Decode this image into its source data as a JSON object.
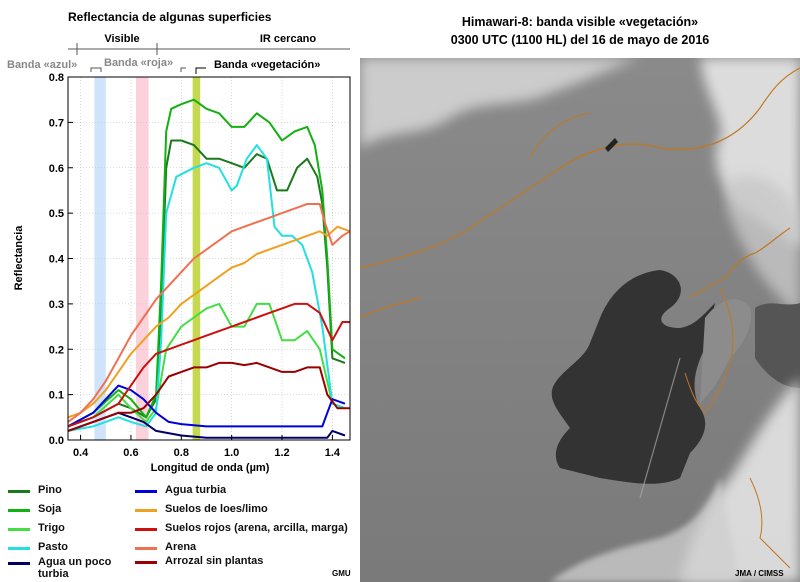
{
  "left_panel": {
    "title": "Reflectancia de algunas superficies",
    "region_labels": {
      "visible": "Visible",
      "nir": "IR cercano"
    },
    "band_labels": {
      "blue": "Banda «azul»",
      "red": "Banda «roja»",
      "veg": "Banda «vegetación»"
    },
    "credit": "GMU"
  },
  "right_panel": {
    "title_line1": "Himawari-8: banda visible «vegetación»",
    "title_line2": "0300 UTC (1100 HL) del 16 de mayo de 2016",
    "credit": "JMA / CIMSS"
  },
  "legend": [
    {
      "label": "Pino",
      "color": "#1a7a1a"
    },
    {
      "label": "Soja",
      "color": "#12b012"
    },
    {
      "label": "Trigo",
      "color": "#44dd44"
    },
    {
      "label": "Pasto",
      "color": "#22e0e0"
    },
    {
      "label": "Agua un poco turbia",
      "color": "#000066"
    },
    {
      "label": "Agua turbia",
      "color": "#0000dd"
    },
    {
      "label": "Suelos de loes/limo",
      "color": "#f0a020"
    },
    {
      "label": "Suelos rojos (arena, arcilla, marga)",
      "color": "#cc1010"
    },
    {
      "label": "Arena",
      "color": "#f07050"
    },
    {
      "label": "Arrozal sin plantas",
      "color": "#990000"
    }
  ],
  "chart_data": {
    "type": "line",
    "xlabel": "Longitud de onda (µm)",
    "ylabel": "Reflectancia",
    "xlim": [
      0.35,
      1.47
    ],
    "ylim": [
      0,
      0.8
    ],
    "xticks": [
      "0.4",
      "0.6",
      "0.8",
      "1.0",
      "1.2",
      "1.4"
    ],
    "yticks": [
      "0.0",
      "0.1",
      "0.2",
      "0.3",
      "0.4",
      "0.5",
      "0.6",
      "0.7",
      "0.8"
    ],
    "bands": [
      {
        "name": "Banda «azul»",
        "range": [
          0.455,
          0.5
        ],
        "color": "#cfe4fb"
      },
      {
        "name": "Banda «roja»",
        "range": [
          0.62,
          0.67
        ],
        "color": "#fbd2dc"
      },
      {
        "name": "Banda «vegetación»",
        "range": [
          0.845,
          0.875
        ],
        "color": "#c6d850"
      }
    ],
    "series": [
      {
        "name": "Pino",
        "color": "#1a7a1a",
        "points": [
          [
            0.35,
            0.03
          ],
          [
            0.45,
            0.05
          ],
          [
            0.55,
            0.08
          ],
          [
            0.6,
            0.07
          ],
          [
            0.66,
            0.05
          ],
          [
            0.7,
            0.09
          ],
          [
            0.72,
            0.3
          ],
          [
            0.74,
            0.6
          ],
          [
            0.76,
            0.66
          ],
          [
            0.8,
            0.66
          ],
          [
            0.85,
            0.65
          ],
          [
            0.9,
            0.62
          ],
          [
            0.95,
            0.62
          ],
          [
            1.0,
            0.61
          ],
          [
            1.05,
            0.6
          ],
          [
            1.1,
            0.63
          ],
          [
            1.14,
            0.62
          ],
          [
            1.18,
            0.55
          ],
          [
            1.22,
            0.55
          ],
          [
            1.26,
            0.6
          ],
          [
            1.3,
            0.62
          ],
          [
            1.34,
            0.58
          ],
          [
            1.36,
            0.52
          ],
          [
            1.38,
            0.38
          ],
          [
            1.4,
            0.18
          ],
          [
            1.45,
            0.17
          ]
        ]
      },
      {
        "name": "Soja",
        "color": "#12b012",
        "points": [
          [
            0.35,
            0.03
          ],
          [
            0.45,
            0.06
          ],
          [
            0.55,
            0.11
          ],
          [
            0.6,
            0.09
          ],
          [
            0.66,
            0.05
          ],
          [
            0.7,
            0.1
          ],
          [
            0.72,
            0.35
          ],
          [
            0.74,
            0.68
          ],
          [
            0.76,
            0.73
          ],
          [
            0.8,
            0.74
          ],
          [
            0.85,
            0.75
          ],
          [
            0.9,
            0.73
          ],
          [
            0.95,
            0.72
          ],
          [
            1.0,
            0.69
          ],
          [
            1.05,
            0.69
          ],
          [
            1.1,
            0.72
          ],
          [
            1.15,
            0.7
          ],
          [
            1.2,
            0.66
          ],
          [
            1.25,
            0.68
          ],
          [
            1.3,
            0.69
          ],
          [
            1.33,
            0.65
          ],
          [
            1.36,
            0.55
          ],
          [
            1.38,
            0.4
          ],
          [
            1.4,
            0.2
          ],
          [
            1.45,
            0.18
          ]
        ]
      },
      {
        "name": "Trigo",
        "color": "#44dd44",
        "points": [
          [
            0.35,
            0.03
          ],
          [
            0.45,
            0.05
          ],
          [
            0.55,
            0.1
          ],
          [
            0.6,
            0.07
          ],
          [
            0.66,
            0.04
          ],
          [
            0.7,
            0.07
          ],
          [
            0.74,
            0.2
          ],
          [
            0.8,
            0.25
          ],
          [
            0.85,
            0.27
          ],
          [
            0.9,
            0.29
          ],
          [
            0.95,
            0.3
          ],
          [
            1.0,
            0.25
          ],
          [
            1.05,
            0.25
          ],
          [
            1.1,
            0.3
          ],
          [
            1.15,
            0.3
          ],
          [
            1.2,
            0.22
          ],
          [
            1.25,
            0.22
          ],
          [
            1.3,
            0.24
          ],
          [
            1.35,
            0.2
          ],
          [
            1.4,
            0.08
          ],
          [
            1.45,
            0.07
          ]
        ]
      },
      {
        "name": "Pasto",
        "color": "#22e0e0",
        "points": [
          [
            0.35,
            0.02
          ],
          [
            0.45,
            0.03
          ],
          [
            0.55,
            0.05
          ],
          [
            0.6,
            0.04
          ],
          [
            0.66,
            0.03
          ],
          [
            0.7,
            0.06
          ],
          [
            0.72,
            0.22
          ],
          [
            0.74,
            0.5
          ],
          [
            0.78,
            0.58
          ],
          [
            0.85,
            0.6
          ],
          [
            0.9,
            0.61
          ],
          [
            0.95,
            0.6
          ],
          [
            1.0,
            0.55
          ],
          [
            1.02,
            0.56
          ],
          [
            1.06,
            0.62
          ],
          [
            1.1,
            0.65
          ],
          [
            1.14,
            0.62
          ],
          [
            1.17,
            0.47
          ],
          [
            1.2,
            0.45
          ],
          [
            1.24,
            0.45
          ],
          [
            1.28,
            0.43
          ],
          [
            1.32,
            0.37
          ],
          [
            1.36,
            0.25
          ],
          [
            1.4,
            0.08
          ],
          [
            1.45,
            0.07
          ]
        ]
      },
      {
        "name": "Agua un poco turbia",
        "color": "#000066",
        "points": [
          [
            0.35,
            0.02
          ],
          [
            0.45,
            0.04
          ],
          [
            0.55,
            0.06
          ],
          [
            0.6,
            0.05
          ],
          [
            0.65,
            0.04
          ],
          [
            0.7,
            0.02
          ],
          [
            0.8,
            0.01
          ],
          [
            0.9,
            0.005
          ],
          [
            1.0,
            0.005
          ],
          [
            1.2,
            0.005
          ],
          [
            1.3,
            0.005
          ],
          [
            1.38,
            0.005
          ],
          [
            1.4,
            0.02
          ],
          [
            1.45,
            0.01
          ]
        ]
      },
      {
        "name": "Agua turbia",
        "color": "#0000dd",
        "points": [
          [
            0.35,
            0.03
          ],
          [
            0.45,
            0.06
          ],
          [
            0.55,
            0.12
          ],
          [
            0.6,
            0.11
          ],
          [
            0.65,
            0.09
          ],
          [
            0.7,
            0.06
          ],
          [
            0.75,
            0.04
          ],
          [
            0.8,
            0.035
          ],
          [
            0.9,
            0.03
          ],
          [
            1.0,
            0.03
          ],
          [
            1.1,
            0.03
          ],
          [
            1.2,
            0.03
          ],
          [
            1.3,
            0.03
          ],
          [
            1.36,
            0.03
          ],
          [
            1.38,
            0.06
          ],
          [
            1.4,
            0.09
          ],
          [
            1.45,
            0.08
          ]
        ]
      },
      {
        "name": "Suelos de loes/limo",
        "color": "#f0a020",
        "points": [
          [
            0.35,
            0.05
          ],
          [
            0.4,
            0.06
          ],
          [
            0.45,
            0.08
          ],
          [
            0.5,
            0.11
          ],
          [
            0.55,
            0.15
          ],
          [
            0.6,
            0.19
          ],
          [
            0.65,
            0.22
          ],
          [
            0.7,
            0.25
          ],
          [
            0.75,
            0.27
          ],
          [
            0.8,
            0.3
          ],
          [
            0.85,
            0.32
          ],
          [
            0.9,
            0.34
          ],
          [
            0.95,
            0.36
          ],
          [
            1.0,
            0.38
          ],
          [
            1.05,
            0.39
          ],
          [
            1.1,
            0.41
          ],
          [
            1.15,
            0.42
          ],
          [
            1.2,
            0.43
          ],
          [
            1.25,
            0.44
          ],
          [
            1.3,
            0.45
          ],
          [
            1.35,
            0.46
          ],
          [
            1.38,
            0.45
          ],
          [
            1.42,
            0.47
          ],
          [
            1.47,
            0.46
          ]
        ]
      },
      {
        "name": "Suelos rojos (arena, arcilla, marga)",
        "color": "#cc1010",
        "points": [
          [
            0.35,
            0.03
          ],
          [
            0.45,
            0.05
          ],
          [
            0.55,
            0.08
          ],
          [
            0.6,
            0.12
          ],
          [
            0.65,
            0.16
          ],
          [
            0.7,
            0.19
          ],
          [
            0.75,
            0.2
          ],
          [
            0.8,
            0.21
          ],
          [
            0.85,
            0.22
          ],
          [
            0.9,
            0.23
          ],
          [
            0.95,
            0.24
          ],
          [
            1.0,
            0.25
          ],
          [
            1.05,
            0.26
          ],
          [
            1.1,
            0.27
          ],
          [
            1.15,
            0.28
          ],
          [
            1.2,
            0.29
          ],
          [
            1.25,
            0.3
          ],
          [
            1.3,
            0.3
          ],
          [
            1.35,
            0.28
          ],
          [
            1.4,
            0.22
          ],
          [
            1.44,
            0.26
          ],
          [
            1.47,
            0.26
          ]
        ]
      },
      {
        "name": "Arena",
        "color": "#f07050",
        "points": [
          [
            0.35,
            0.04
          ],
          [
            0.4,
            0.06
          ],
          [
            0.45,
            0.09
          ],
          [
            0.5,
            0.13
          ],
          [
            0.55,
            0.18
          ],
          [
            0.6,
            0.23
          ],
          [
            0.65,
            0.27
          ],
          [
            0.7,
            0.31
          ],
          [
            0.75,
            0.34
          ],
          [
            0.8,
            0.37
          ],
          [
            0.85,
            0.4
          ],
          [
            0.9,
            0.42
          ],
          [
            0.95,
            0.44
          ],
          [
            1.0,
            0.46
          ],
          [
            1.05,
            0.47
          ],
          [
            1.1,
            0.48
          ],
          [
            1.15,
            0.49
          ],
          [
            1.2,
            0.5
          ],
          [
            1.25,
            0.51
          ],
          [
            1.3,
            0.52
          ],
          [
            1.35,
            0.52
          ],
          [
            1.37,
            0.48
          ],
          [
            1.4,
            0.43
          ],
          [
            1.44,
            0.45
          ],
          [
            1.47,
            0.46
          ]
        ]
      },
      {
        "name": "Arrozal sin plantas",
        "color": "#990000",
        "points": [
          [
            0.35,
            0.02
          ],
          [
            0.45,
            0.04
          ],
          [
            0.55,
            0.06
          ],
          [
            0.6,
            0.06
          ],
          [
            0.65,
            0.07
          ],
          [
            0.7,
            0.1
          ],
          [
            0.75,
            0.14
          ],
          [
            0.8,
            0.15
          ],
          [
            0.85,
            0.16
          ],
          [
            0.9,
            0.16
          ],
          [
            0.95,
            0.17
          ],
          [
            1.0,
            0.17
          ],
          [
            1.05,
            0.165
          ],
          [
            1.1,
            0.17
          ],
          [
            1.15,
            0.16
          ],
          [
            1.2,
            0.15
          ],
          [
            1.25,
            0.15
          ],
          [
            1.3,
            0.16
          ],
          [
            1.35,
            0.16
          ],
          [
            1.38,
            0.1
          ],
          [
            1.42,
            0.07
          ],
          [
            1.47,
            0.07
          ]
        ]
      }
    ]
  }
}
